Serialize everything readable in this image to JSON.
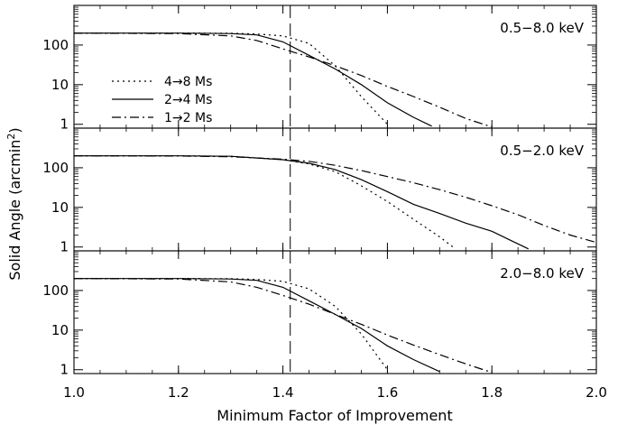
{
  "chart_data": {
    "type": "line",
    "xlabel": "Minimum Factor of Improvement",
    "ylabel_text": "Solid Angle (arcmin",
    "ylabel_sup": "2",
    "ylabel_close": ")",
    "xlim": [
      1.0,
      2.0
    ],
    "ylim": [
      0.8,
      1000
    ],
    "yscale": "log",
    "x_tick_labels": [
      "1.0",
      "1.2",
      "1.4",
      "1.6",
      "1.8",
      "2.0"
    ],
    "x_tick_values": [
      1.0,
      1.2,
      1.4,
      1.6,
      1.8,
      2.0
    ],
    "y_tick_labels": [
      "1",
      "10",
      "100"
    ],
    "y_tick_values": [
      1,
      10,
      100
    ],
    "reference_line_x": 1.414,
    "legend": {
      "placement": "left",
      "entries": [
        {
          "label": "4→8 Ms",
          "style": "dotted"
        },
        {
          "label": "2→4 Ms",
          "style": "solid"
        },
        {
          "label": "1→2 Ms",
          "style": "dashdot"
        }
      ]
    },
    "panels": [
      {
        "label": "0.5−8.0 keV",
        "series": [
          {
            "style": "dotted",
            "x": [
              1.0,
              1.2,
              1.3,
              1.35,
              1.4,
              1.45,
              1.5,
              1.55,
              1.6
            ],
            "y": [
              200,
              200,
              198,
              190,
              170,
              110,
              30,
              5,
              1
            ]
          },
          {
            "style": "solid",
            "x": [
              1.0,
              1.2,
              1.3,
              1.35,
              1.4,
              1.45,
              1.5,
              1.55,
              1.6,
              1.65,
              1.685
            ],
            "y": [
              200,
              200,
              195,
              180,
              120,
              55,
              25,
              10,
              3.5,
              1.5,
              0.9
            ]
          },
          {
            "style": "dashdot",
            "x": [
              1.0,
              1.2,
              1.3,
              1.35,
              1.4,
              1.45,
              1.5,
              1.55,
              1.6,
              1.65,
              1.7,
              1.75,
              1.8
            ],
            "y": [
              200,
              195,
              170,
              130,
              80,
              50,
              30,
              17,
              9,
              5,
              2.7,
              1.4,
              0.85
            ]
          }
        ]
      },
      {
        "label": "0.5−2.0 keV",
        "series": [
          {
            "style": "dotted",
            "x": [
              1.0,
              1.2,
              1.3,
              1.4,
              1.45,
              1.5,
              1.55,
              1.6,
              1.65,
              1.7,
              1.73
            ],
            "y": [
              200,
              200,
              195,
              160,
              125,
              80,
              35,
              14,
              5,
              1.8,
              0.9
            ]
          },
          {
            "style": "solid",
            "x": [
              1.0,
              1.2,
              1.3,
              1.4,
              1.45,
              1.5,
              1.55,
              1.6,
              1.65,
              1.7,
              1.75,
              1.8,
              1.85,
              1.87
            ],
            "y": [
              200,
              200,
              195,
              160,
              130,
              90,
              50,
              25,
              12,
              7,
              4,
              2.5,
              1.2,
              0.9
            ]
          },
          {
            "style": "dashdot",
            "x": [
              1.0,
              1.2,
              1.3,
              1.4,
              1.45,
              1.5,
              1.55,
              1.6,
              1.65,
              1.7,
              1.75,
              1.8,
              1.85,
              1.9,
              1.95,
              2.0
            ],
            "y": [
              200,
              198,
              190,
              165,
              145,
              115,
              85,
              60,
              42,
              28,
              18,
              11,
              6.5,
              3.5,
              2.0,
              1.3
            ]
          }
        ]
      },
      {
        "label": "2.0−8.0 keV",
        "series": [
          {
            "style": "dotted",
            "x": [
              1.0,
              1.2,
              1.3,
              1.35,
              1.4,
              1.45,
              1.5,
              1.55,
              1.6
            ],
            "y": [
              200,
              200,
              198,
              190,
              170,
              110,
              40,
              8,
              1
            ]
          },
          {
            "style": "solid",
            "x": [
              1.0,
              1.2,
              1.3,
              1.35,
              1.4,
              1.45,
              1.5,
              1.55,
              1.6,
              1.65,
              1.7
            ],
            "y": [
              200,
              200,
              195,
              180,
              120,
              55,
              25,
              11,
              4,
              1.8,
              0.9
            ]
          },
          {
            "style": "dashdot",
            "x": [
              1.0,
              1.2,
              1.3,
              1.35,
              1.4,
              1.45,
              1.5,
              1.55,
              1.6,
              1.65,
              1.7,
              1.75,
              1.8
            ],
            "y": [
              200,
              195,
              165,
              120,
              75,
              45,
              25,
              14,
              7.5,
              4.2,
              2.4,
              1.4,
              0.85
            ]
          }
        ]
      }
    ]
  }
}
